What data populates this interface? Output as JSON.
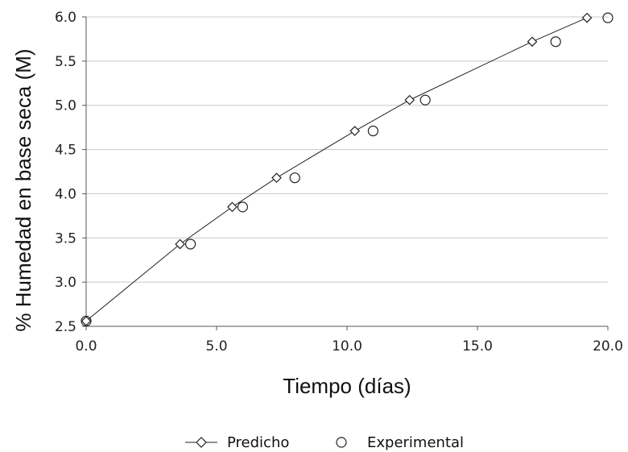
{
  "chart_data": {
    "type": "scatter",
    "title": "",
    "xlabel": "Tiempo (días)",
    "ylabel": "% Humedad en base seca (M)",
    "xlim": [
      0,
      20
    ],
    "ylim": [
      2.5,
      6.0
    ],
    "xticks": [
      0,
      5,
      10,
      15,
      20
    ],
    "xtick_labels": [
      "0.0",
      "5.0",
      "10.0",
      "15.0",
      "20.0"
    ],
    "yticks": [
      2.5,
      3.0,
      3.5,
      4.0,
      4.5,
      5.0,
      5.5,
      6.0
    ],
    "ytick_labels": [
      "2.5",
      "3.0",
      "3.5",
      "4.0",
      "4.5",
      "5.0",
      "5.5",
      "6.0"
    ],
    "grid": true,
    "legend_position": "bottom-center",
    "series": [
      {
        "name": "Predicho",
        "marker": "diamond",
        "line": true,
        "x": [
          0.0,
          3.6,
          5.6,
          7.3,
          10.3,
          12.4,
          17.1,
          19.2
        ],
        "y": [
          2.56,
          3.43,
          3.85,
          4.18,
          4.71,
          5.06,
          5.72,
          5.99
        ]
      },
      {
        "name": "Experimental",
        "marker": "circle",
        "line": false,
        "x": [
          0.0,
          4.0,
          6.0,
          8.0,
          11.0,
          13.0,
          18.0,
          20.0
        ],
        "y": [
          2.56,
          3.43,
          3.85,
          4.18,
          4.71,
          5.06,
          5.72,
          5.99
        ]
      }
    ],
    "colors": {
      "line": "#222222",
      "grid": "#c8c8c8",
      "axis": "#555555"
    }
  }
}
